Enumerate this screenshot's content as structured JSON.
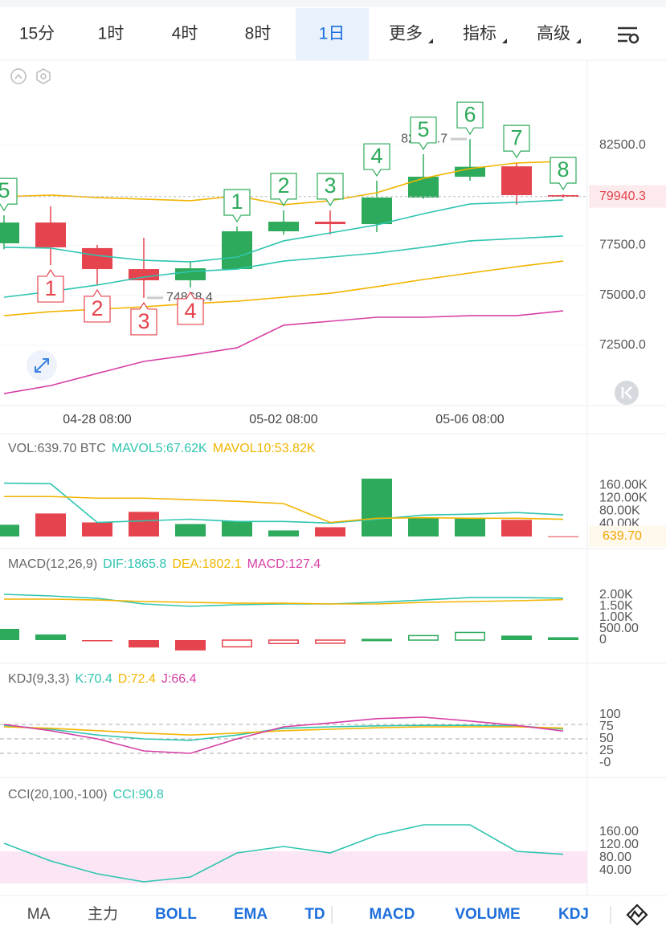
{
  "timeframe_tabs": [
    "15分",
    "1时",
    "4时",
    "8时",
    "1日",
    "更多",
    "指标",
    "高级"
  ],
  "active_tab": 4,
  "indicator_tabs": [
    "MA",
    "主力",
    "BOLL",
    "EMA",
    "TD",
    "MACD",
    "VOLUME",
    "KDJ"
  ],
  "active_indicators": [
    2,
    3,
    4,
    5,
    6,
    7
  ],
  "chart_data": [
    {
      "type": "candlestick",
      "categories": [
        null,
        null,
        "04-28 08:00",
        null,
        null,
        null,
        "05-02 08:00",
        null,
        null,
        null,
        "05-06 08:00",
        null,
        null
      ],
      "open": [
        77600,
        78640,
        77360,
        76310,
        75750,
        76310,
        78200,
        78680,
        78560,
        79890,
        80930,
        81450,
        80010
      ],
      "high": [
        79000,
        79450,
        77520,
        77880,
        76710,
        78440,
        79250,
        79250,
        80730,
        82060,
        82814.7,
        81650,
        80050
      ],
      "low": [
        77300,
        76510,
        75510,
        74868.4,
        75390,
        76300,
        78040,
        78040,
        78160,
        79830,
        80730,
        79530,
        79890
      ],
      "close": [
        78640,
        77400,
        76310,
        75750,
        76350,
        78200,
        78680,
        78560,
        79890,
        80930,
        81430,
        80010,
        79940.3
      ],
      "up_color": "#2daa5b",
      "down_color": "#e5434d",
      "td_up": [
        5,
        null,
        null,
        null,
        null,
        1,
        2,
        3,
        4,
        5,
        6,
        7,
        8
      ],
      "td_down": [
        null,
        1,
        2,
        3,
        4,
        null,
        null,
        null,
        null,
        null,
        null,
        null,
        null
      ],
      "series": [
        {
          "color": "#f2b400",
          "values": [
            79930,
            80010,
            79890,
            79810,
            79730,
            79970,
            79530,
            79730,
            80130,
            80850,
            81340,
            81620,
            81700
          ]
        },
        {
          "color": "#2fc5b0",
          "values": [
            77400,
            77360,
            76990,
            76750,
            76670,
            76910,
            77720,
            78120,
            78520,
            79080,
            79570,
            79650,
            79770
          ]
        },
        {
          "color": "#2fc5b0",
          "values": [
            74900,
            75190,
            75510,
            75910,
            76190,
            76310,
            76710,
            76910,
            77110,
            77400,
            77720,
            77840,
            77960
          ]
        },
        {
          "color": "#f2b400",
          "values": [
            73980,
            74180,
            74300,
            74420,
            74580,
            74700,
            74900,
            75100,
            75430,
            75790,
            76110,
            76430,
            76710
          ]
        },
        {
          "color": "#d63fa5",
          "values": [
            70080,
            70480,
            71090,
            71690,
            72010,
            72370,
            73500,
            73700,
            73900,
            73900,
            73980,
            73980,
            74220
          ]
        }
      ],
      "ylim": [
        69480,
        86760
      ],
      "yticks": [
        {
          "value": 72500,
          "label": "72500.0"
        },
        {
          "value": 75000,
          "label": "75000.0"
        },
        {
          "value": 77500,
          "label": "77500.0"
        },
        {
          "value": 82500,
          "label": "82500.0"
        }
      ],
      "grid": true
    },
    {
      "type": "volume",
      "title": "VOL:639.70 BTC",
      "values": [
        36700,
        72000,
        44000,
        77000,
        39000,
        49000,
        19000,
        29000,
        181000,
        59000,
        59000,
        52000,
        639.7
      ],
      "value_labels": [
        null,
        null,
        null,
        null,
        null,
        null,
        null,
        null,
        null,
        null,
        null,
        null,
        "639.70"
      ],
      "series": [
        {
          "name": "MAVOL5:67.62K",
          "color": "#2fc5b0",
          "values": [
            167000,
            165000,
            44000,
            49000,
            54000,
            47000,
            47000,
            42000,
            54000,
            67000,
            70000,
            75000,
            67620
          ]
        },
        {
          "name": "MAVOL10:53.82K",
          "color": "#f2b400",
          "values": [
            125000,
            125000,
            120000,
            120000,
            115000,
            110000,
            103000,
            44000,
            57000,
            59000,
            57000,
            57000,
            53820
          ]
        }
      ],
      "ylim": [
        0,
        196000
      ],
      "yticks": [
        {
          "value": 40000,
          "label": "40.00K"
        },
        {
          "value": 80000,
          "label": "80.00K"
        },
        {
          "value": 120000,
          "label": "120.00K"
        },
        {
          "value": 160000,
          "label": "160.00K"
        }
      ]
    },
    {
      "type": "macd",
      "title": "MACD(12,26,9)",
      "series": [
        {
          "name": "DIF:1865.8",
          "color": "#2fc5b0",
          "values": [
            2035,
            1964,
            1857,
            1607,
            1500,
            1571,
            1607,
            1607,
            1678,
            1785,
            1892,
            1892,
            1865.8
          ]
        },
        {
          "name": "DEA:1802.1",
          "color": "#f2b400",
          "values": [
            1821,
            1821,
            1785,
            1714,
            1678,
            1642,
            1642,
            1607,
            1607,
            1678,
            1714,
            1750,
            1802.1
          ]
        }
      ],
      "histogram": {
        "name": "MACD:127.4",
        "color": "#d63fa5",
        "values": [
          500,
          250,
          -30,
          -330,
          -460,
          -300,
          -150,
          -140,
          30,
          200,
          340,
          200,
          127.4
        ]
      },
      "ylim": [
        -821,
        2571
      ],
      "yticks": [
        0,
        {
          "value": 500,
          "label": "500.00"
        },
        {
          "value": 1000,
          "label": "1.00K"
        },
        {
          "value": 1500,
          "label": "1.50K"
        },
        {
          "value": 2000,
          "label": "2.00K"
        }
      ]
    },
    {
      "type": "kdj",
      "title": "KDJ(9,3,3)",
      "series": [
        {
          "name": "K:70.4",
          "color": "#2fc5b0",
          "values": [
            78,
            70,
            58,
            50,
            47,
            58,
            72,
            75,
            77,
            78,
            78,
            77,
            70.4
          ]
        },
        {
          "name": "D:72.4",
          "color": "#f2b400",
          "values": [
            75,
            72,
            67,
            62,
            58,
            62,
            67,
            70,
            73,
            75,
            75,
            75,
            72.4
          ]
        },
        {
          "name": "J:66.4",
          "color": "#d63fa5",
          "values": [
            80,
            67,
            50,
            25,
            20,
            50,
            75,
            83,
            92,
            95,
            87,
            78,
            66.4
          ]
        }
      ],
      "levels": [
        20,
        50,
        80
      ],
      "ylim": [
        -25,
        150
      ],
      "yticks": [
        {
          "value": 0,
          "label": "-0"
        },
        25,
        50,
        75,
        100
      ]
    },
    {
      "type": "cci",
      "title": "CCI(20,100,-100)",
      "series": [
        {
          "name": "CCI:90.8",
          "color": "#2fc5b0",
          "values": [
            125,
            70,
            30,
            5,
            20,
            95,
            115,
            95,
            150,
            182.5,
            182.5,
            100,
            90.8
          ]
        }
      ],
      "band": [
        -100,
        100
      ],
      "band_color": "#fce6f5",
      "ylim": [
        0,
        287.5
      ],
      "yticks": [
        {
          "value": 40,
          "label": "40.00"
        },
        {
          "value": 80,
          "label": "80.00"
        },
        {
          "value": 120,
          "label": "120.00"
        },
        {
          "value": 160,
          "label": "160.00"
        }
      ]
    }
  ]
}
